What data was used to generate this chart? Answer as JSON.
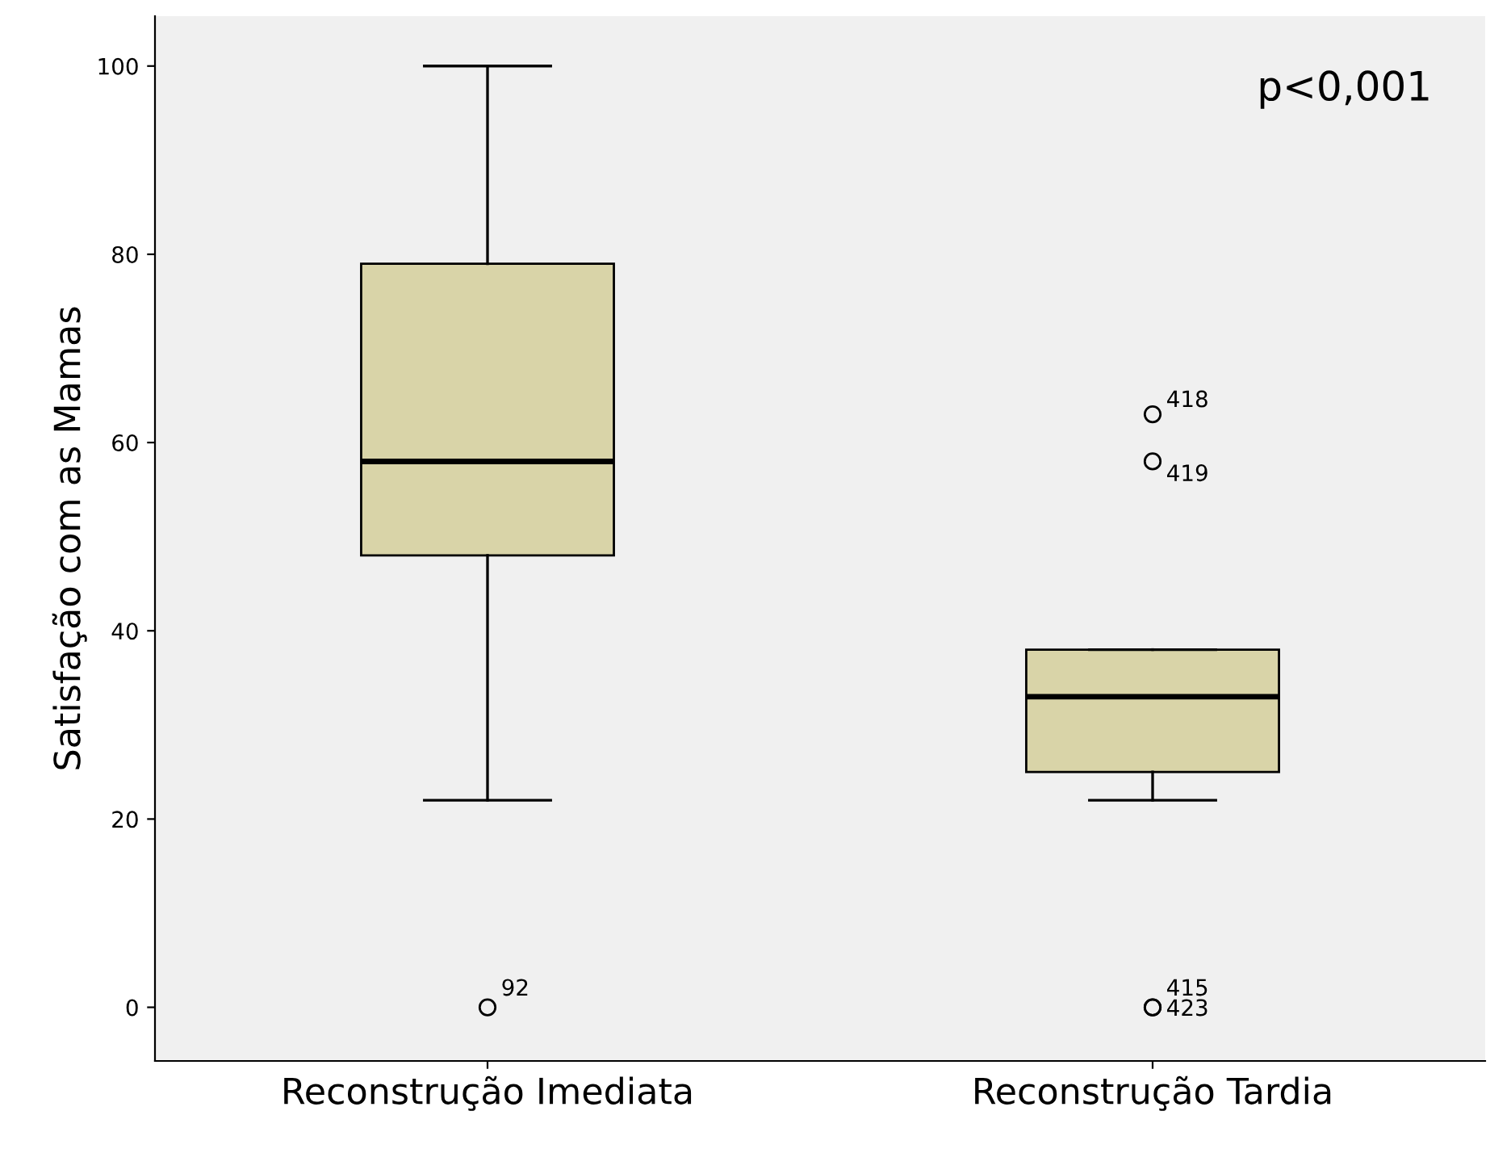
{
  "chart_data": {
    "type": "box",
    "ylabel": "Satisfação com as Mamas",
    "categories": [
      "Reconstrução Imediata",
      "Reconstrução Tardia"
    ],
    "color": "#d9d4a8",
    "boxes": [
      {
        "low": 22,
        "q1": 48,
        "median": 58,
        "q3": 79,
        "high": 100,
        "outliers": [
          0
        ]
      },
      {
        "low": 22,
        "q1": 25,
        "median": 33,
        "q3": 38,
        "high": 38,
        "outliers": [
          63,
          58,
          0,
          0
        ]
      }
    ],
    "ylim": [
      -5.7,
      105.3
    ],
    "yticks": [
      0,
      20,
      40,
      60,
      80,
      100
    ],
    "grid": false,
    "marker": "circle",
    "annotations": [
      "p<0,001",
      "92",
      "418",
      "419",
      "415",
      "423"
    ]
  }
}
